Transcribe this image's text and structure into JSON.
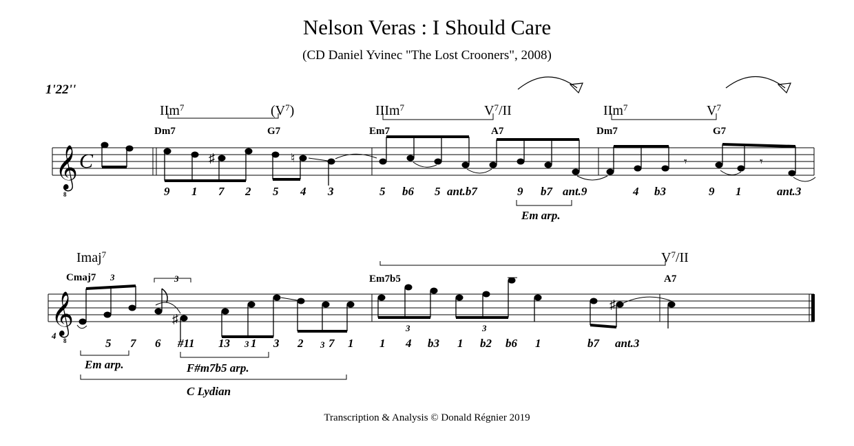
{
  "title": "Nelson Veras : I Should Care",
  "subtitle": "(CD Daniel Yvinec \"The Lost Crooners\", 2008)",
  "timestamp": "1'22''",
  "credit": "Transcription & Analysis © Donald Régnier 2019",
  "meter": "C",
  "line1": {
    "analysis": [
      {
        "roman": "IIm",
        "sup": "7"
      },
      {
        "roman": "(V",
        "sup": "7",
        "suffix": ")"
      },
      {
        "roman": "IIIm",
        "sup": "7"
      },
      {
        "roman": "V",
        "sup": "7",
        "suffix": "/II"
      },
      {
        "roman": "IIm",
        "sup": "7"
      },
      {
        "roman": "V",
        "sup": "7",
        "suffix": ""
      }
    ],
    "chords": [
      "Dm7",
      "G7",
      "Em7",
      "A7",
      "Dm7",
      "G7"
    ],
    "degrees": [
      "9",
      "1",
      "7",
      "2",
      "5",
      "4",
      "3",
      "5",
      "b6",
      "5",
      "ant.b7",
      "9",
      "b7",
      "ant.9",
      "4",
      "b3",
      "9",
      "1",
      "ant.3"
    ],
    "brackets": [
      "Em arp."
    ]
  },
  "line2": {
    "analysis": [
      {
        "roman": "Imaj",
        "sup": "7"
      },
      {
        "roman": "V",
        "sup": "7",
        "suffix": "/II"
      }
    ],
    "chords": [
      "Cmaj7",
      "Em7b5",
      "A7"
    ],
    "degrees": [
      "5",
      "7",
      "6",
      "#11",
      "13",
      "1",
      "3",
      "2",
      "7",
      "1",
      "1",
      "4",
      "b3",
      "1",
      "b2",
      "b6",
      "1",
      "b7",
      "ant.3"
    ],
    "tuplets": [
      "3",
      "3",
      "3",
      "3",
      "3",
      "3"
    ],
    "brackets": [
      "Em arp.",
      "F#m7b5 arp.",
      "C Lydian"
    ]
  }
}
